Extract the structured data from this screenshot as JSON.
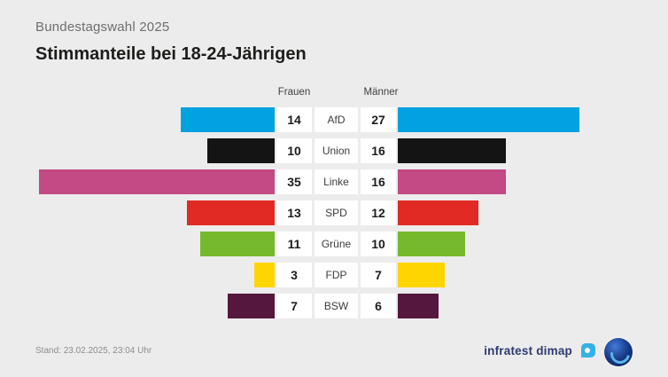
{
  "header": {
    "kicker": "Bundestagswahl 2025",
    "title": "Stimmanteile bei 18-24-Jährigen"
  },
  "chart_data": {
    "type": "bar",
    "variant": "butterfly-diverging",
    "title": "Stimmanteile bei 18-24-Jährigen",
    "categories": [
      "AfD",
      "Union",
      "Linke",
      "SPD",
      "Grüne",
      "FDP",
      "BSW"
    ],
    "series": [
      {
        "name": "Frauen",
        "side": "left",
        "values": [
          14,
          10,
          35,
          13,
          11,
          3,
          7
        ]
      },
      {
        "name": "Männer",
        "side": "right",
        "values": [
          27,
          16,
          16,
          12,
          10,
          7,
          6
        ]
      }
    ],
    "colors": [
      "#00a3e0",
      "#141414",
      "#c34a84",
      "#e02a23",
      "#77b92c",
      "#ffd500",
      "#55173d"
    ],
    "xlim": [
      0,
      35
    ],
    "grid": false,
    "value_labels": "inside-white-boxes"
  },
  "footer": {
    "stand": "Stand: 23.02.2025, 23:04 Uhr",
    "brand": "infratest dimap"
  },
  "icons": {
    "dimap_logo": "dimap-logo",
    "ard_logo": "ard-circle-logo"
  }
}
